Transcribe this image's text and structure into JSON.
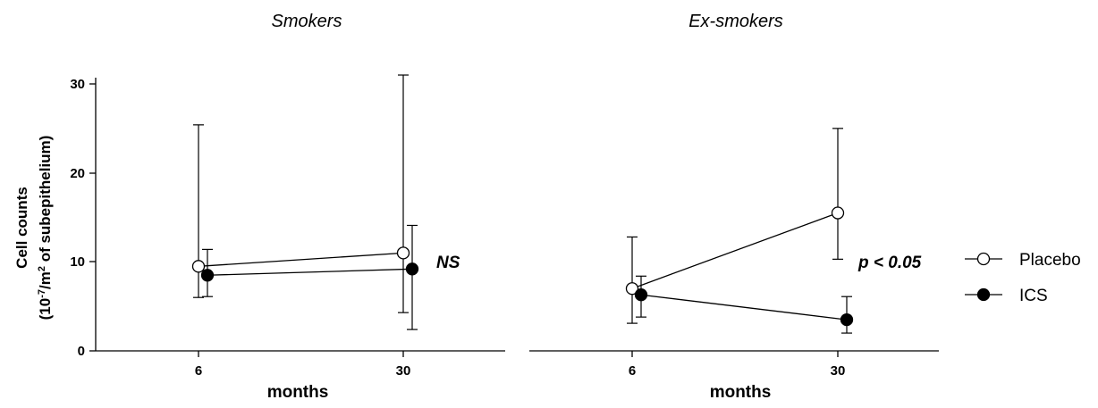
{
  "chart_data": [
    {
      "type": "line",
      "title": "Smokers",
      "xlabel": "months",
      "ylabel_line1": "Cell counts",
      "ylabel_line2_pre": "(10",
      "ylabel_exp1": "-7",
      "ylabel_line2_mid": "/m",
      "ylabel_exp2": "2",
      "ylabel_line2_post": " of subepithelium)",
      "categories": [
        "6",
        "30"
      ],
      "ylim": [
        0,
        31
      ],
      "yticks": [
        "0",
        "10",
        "20",
        "30"
      ],
      "annotation": "NS",
      "series": [
        {
          "name": "Placebo",
          "marker": "open-circle",
          "values": [
            9.5,
            11.0
          ],
          "err_low": [
            6.0,
            4.3
          ],
          "err_high": [
            25.4,
            31.0
          ]
        },
        {
          "name": "ICS",
          "marker": "filled-circle",
          "values": [
            8.5,
            9.2
          ],
          "err_low": [
            6.1,
            2.4
          ],
          "err_high": [
            11.4,
            14.1
          ]
        }
      ]
    },
    {
      "type": "line",
      "title": "Ex-smokers",
      "xlabel": "months",
      "categories": [
        "6",
        "30"
      ],
      "ylim": [
        0,
        31
      ],
      "annotation": "p < 0.05",
      "series": [
        {
          "name": "Placebo",
          "marker": "open-circle",
          "values": [
            7.0,
            15.5
          ],
          "err_low": [
            3.1,
            10.3
          ],
          "err_high": [
            12.8,
            25.0
          ]
        },
        {
          "name": "ICS",
          "marker": "filled-circle",
          "values": [
            6.3,
            3.5
          ],
          "err_low": [
            3.8,
            2.0
          ],
          "err_high": [
            8.4,
            6.1
          ]
        }
      ]
    }
  ],
  "legend": {
    "items": [
      {
        "label": "Placebo",
        "marker": "open-circle"
      },
      {
        "label": "ICS",
        "marker": "filled-circle"
      }
    ]
  }
}
